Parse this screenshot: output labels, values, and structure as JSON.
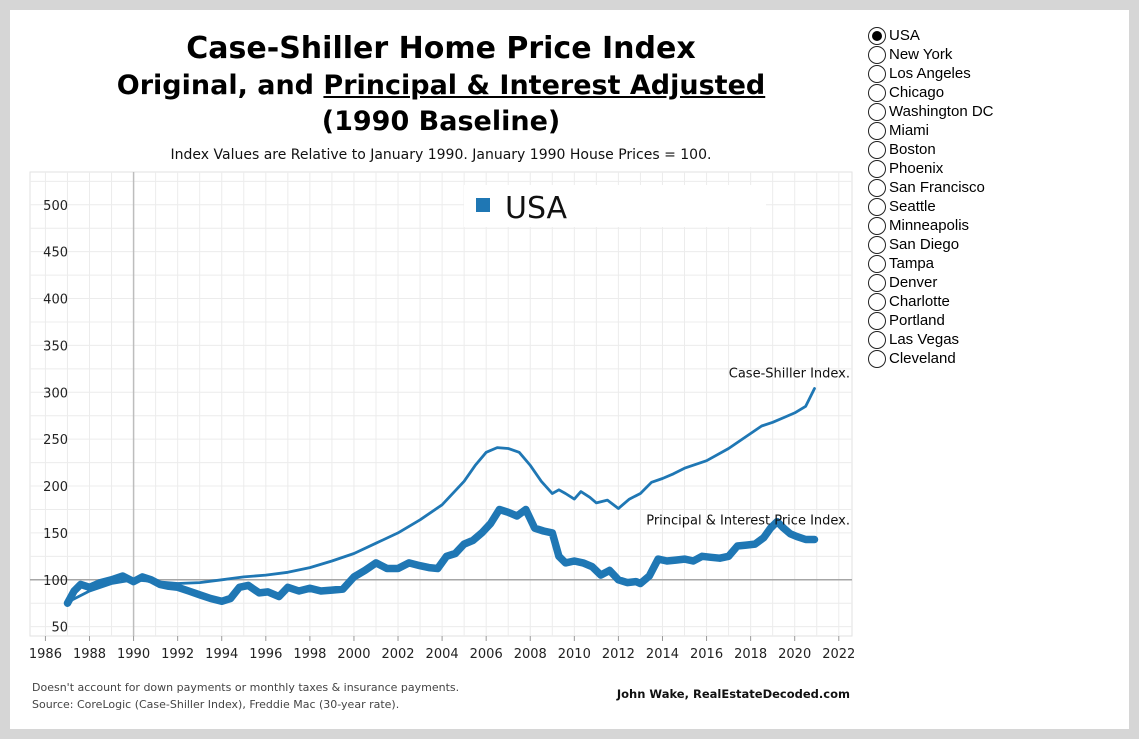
{
  "header": {
    "title_line1": "Case-Shiller Home Price Index",
    "title_line2_prefix": "Original, and ",
    "title_line2_underlined": "Principal & Interest Adjusted",
    "title_line3": "(1990 Baseline)",
    "subtitle": "Index Values are Relative to January 1990. January 1990 House Prices = 100."
  },
  "legend": {
    "label": "USA",
    "color": "#1f77b4"
  },
  "annotations": {
    "case_shiller": "Case-Shiller Index.",
    "pi": "Principal & Interest Price Index."
  },
  "footer": {
    "note": "Doesn't account for down payments or monthly taxes & insurance payments.",
    "source": "Source: CoreLogic (Case-Shiller Index), Freddie Mac (30-year rate).",
    "credit": "John Wake, RealEstateDecoded.com"
  },
  "region_selector": {
    "selected": "USA",
    "options": [
      "USA",
      "New York",
      "Los Angeles",
      "Chicago",
      "Washington DC",
      "Miami",
      "Boston",
      "Phoenix",
      "San Francisco",
      "Seattle",
      "Minneapolis",
      "San Diego",
      "Tampa",
      "Denver",
      "Charlotte",
      "Portland",
      "Las Vegas",
      "Cleveland"
    ]
  },
  "chart_data": {
    "type": "line",
    "title": "Case-Shiller Home Price Index",
    "xlim": [
      1985.3,
      2022.6
    ],
    "ylim": [
      40,
      535
    ],
    "xticks": [
      1986,
      1988,
      1990,
      1992,
      1994,
      1996,
      1998,
      2000,
      2002,
      2004,
      2006,
      2008,
      2010,
      2012,
      2014,
      2016,
      2018,
      2020,
      2022
    ],
    "yticks": [
      50,
      100,
      150,
      200,
      250,
      300,
      350,
      400,
      450,
      500
    ],
    "reference_line_y": 100,
    "reference_line_x": 1990,
    "grid": true,
    "series": [
      {
        "name": "Case-Shiller Index.",
        "color": "#1f77b4",
        "x": [
          1987.0,
          1988.0,
          1989.0,
          1990.0,
          1991.0,
          1992.0,
          1993.0,
          1994.0,
          1995.0,
          1996.0,
          1997.0,
          1998.0,
          1999.0,
          2000.0,
          2001.0,
          2002.0,
          2003.0,
          2004.0,
          2005.0,
          2005.5,
          2006.0,
          2006.5,
          2007.0,
          2007.5,
          2008.0,
          2008.5,
          2009.0,
          2009.3,
          2009.6,
          2010.0,
          2010.3,
          2010.7,
          2011.0,
          2011.5,
          2012.0,
          2012.5,
          2013.0,
          2013.5,
          2014.0,
          2014.5,
          2015.0,
          2016.0,
          2017.0,
          2017.5,
          2018.0,
          2018.5,
          2019.0,
          2019.5,
          2020.0,
          2020.5,
          2020.9
        ],
        "values": [
          76,
          88,
          96,
          100,
          98,
          96,
          97,
          100,
          103,
          105,
          108,
          113,
          120,
          128,
          139,
          150,
          164,
          180,
          205,
          222,
          236,
          241,
          240,
          236,
          222,
          205,
          192,
          196,
          192,
          186,
          194,
          188,
          182,
          185,
          176,
          186,
          192,
          204,
          208,
          213,
          219,
          227,
          240,
          248,
          256,
          264,
          268,
          273,
          278,
          285,
          304
        ]
      },
      {
        "name": "Principal & Interest Price Index.",
        "color": "#1f77b4",
        "x": [
          1987.0,
          1987.3,
          1987.6,
          1988.0,
          1988.5,
          1989.0,
          1989.5,
          1990.0,
          1990.4,
          1990.8,
          1991.2,
          1991.6,
          1992.0,
          1992.5,
          1993.0,
          1993.5,
          1994.0,
          1994.4,
          1994.8,
          1995.2,
          1995.7,
          1996.1,
          1996.6,
          1997.0,
          1997.5,
          1998.0,
          1998.5,
          1999.0,
          1999.5,
          2000.0,
          2000.5,
          2001.0,
          2001.5,
          2002.0,
          2002.5,
          2003.0,
          2003.4,
          2003.8,
          2004.2,
          2004.6,
          2005.0,
          2005.4,
          2005.8,
          2006.2,
          2006.6,
          2007.0,
          2007.4,
          2007.8,
          2008.2,
          2008.6,
          2009.0,
          2009.3,
          2009.6,
          2010.0,
          2010.4,
          2010.8,
          2011.2,
          2011.6,
          2012.0,
          2012.4,
          2012.8,
          2013.0,
          2013.4,
          2013.8,
          2014.2,
          2014.6,
          2015.0,
          2015.4,
          2015.8,
          2016.2,
          2016.6,
          2017.0,
          2017.4,
          2017.8,
          2018.2,
          2018.6,
          2018.9,
          2019.2,
          2019.5,
          2019.8,
          2020.1,
          2020.5,
          2020.9
        ],
        "values": [
          75,
          88,
          95,
          92,
          97,
          100,
          104,
          98,
          103,
          100,
          95,
          93,
          92,
          88,
          84,
          80,
          77,
          80,
          92,
          94,
          86,
          87,
          82,
          92,
          88,
          91,
          88,
          89,
          90,
          103,
          110,
          118,
          112,
          112,
          118,
          115,
          113,
          112,
          125,
          128,
          138,
          142,
          150,
          160,
          175,
          172,
          168,
          175,
          155,
          152,
          150,
          125,
          118,
          120,
          118,
          114,
          105,
          110,
          100,
          97,
          98,
          96,
          104,
          122,
          120,
          121,
          122,
          120,
          125,
          124,
          123,
          125,
          136,
          137,
          138,
          145,
          155,
          162,
          155,
          149,
          146,
          143,
          143
        ]
      }
    ]
  }
}
